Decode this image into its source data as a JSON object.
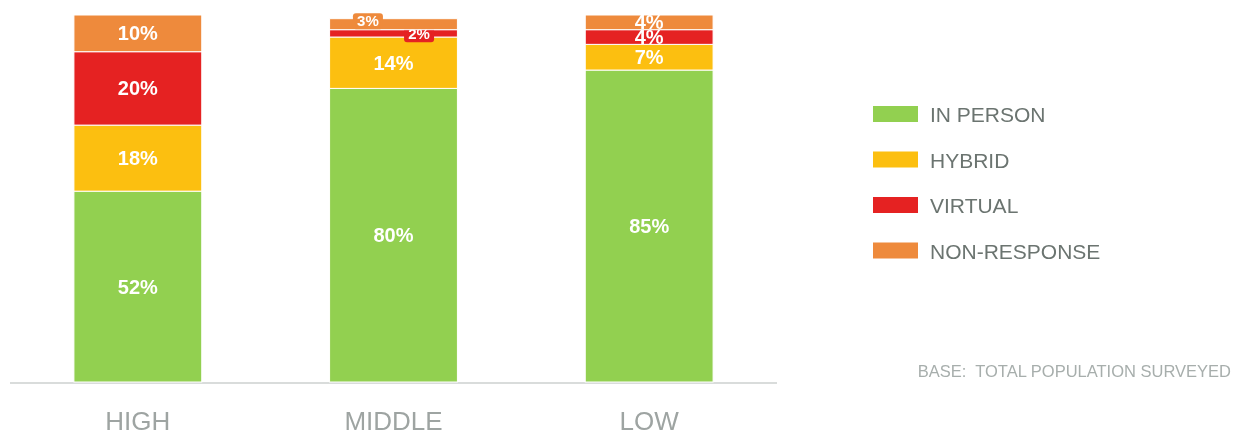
{
  "chart_data": {
    "type": "bar",
    "stacked": true,
    "categories": [
      "HIGH",
      "MIDDLE",
      "LOW"
    ],
    "series": [
      {
        "name": "IN PERSON",
        "color": "#92d050",
        "values": [
          52,
          80,
          85
        ],
        "value_labels": [
          "52%",
          "80%",
          "85%"
        ]
      },
      {
        "name": "HYBRID",
        "color": "#fcbf10",
        "values": [
          18,
          14,
          7
        ],
        "value_labels": [
          "18%",
          "14%",
          "7%"
        ]
      },
      {
        "name": "VIRTUAL",
        "color": "#e52222",
        "values": [
          20,
          2,
          4
        ],
        "value_labels": [
          "20%",
          "2%",
          "4%"
        ]
      },
      {
        "name": "NON-RESPONSE",
        "color": "#ee8a3c",
        "values": [
          10,
          3,
          4
        ],
        "value_labels": [
          "10%",
          "3%",
          "4%"
        ]
      }
    ],
    "legend": "right",
    "annotations": [
      "BASE:  TOTAL POPULATION SURVEYED"
    ]
  }
}
